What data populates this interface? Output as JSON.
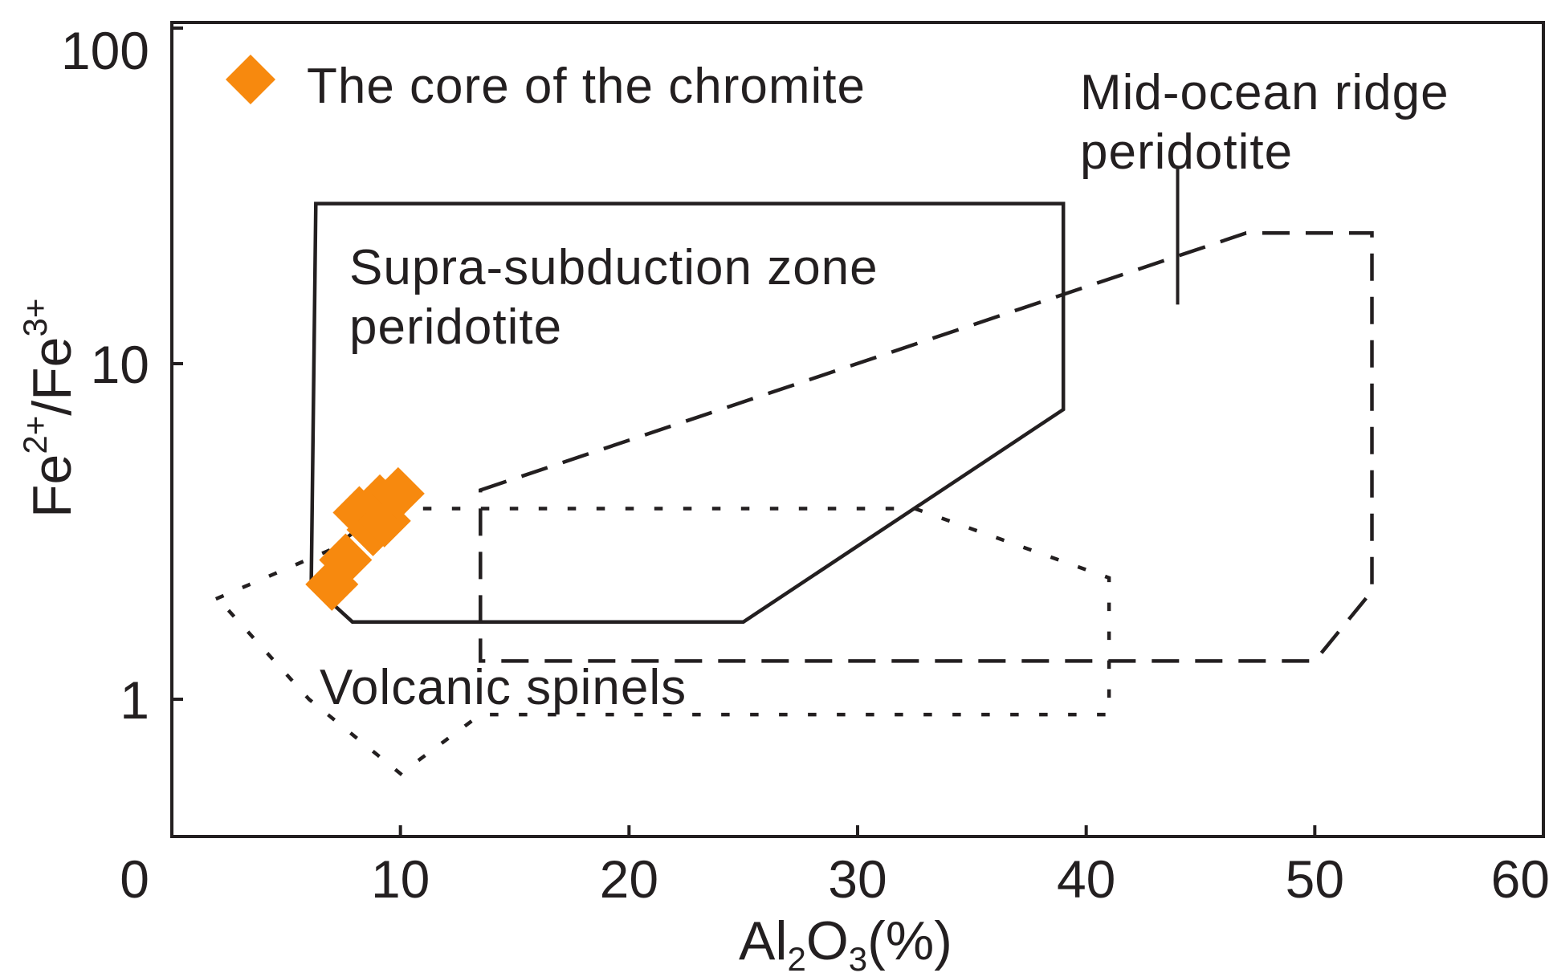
{
  "chart_data": {
    "type": "scatter",
    "title": "",
    "xlabel": {
      "base": "Al",
      "sub1": "2",
      "mid": "O",
      "sub2": "3",
      "tail": "(%)"
    },
    "ylabel": {
      "base1": "Fe",
      "sup1": "2+",
      "mid": "/Fe",
      "sup2": "3+"
    },
    "x_axis": {
      "min": 0,
      "max": 60,
      "ticks": [
        "0",
        "10",
        "20",
        "30",
        "40",
        "50",
        "60"
      ]
    },
    "y_axis": {
      "scale": "log",
      "min": 0.4,
      "max": 100,
      "ticks": [
        "1",
        "10",
        "100"
      ]
    },
    "legend": {
      "position": "top-left",
      "entries": [
        {
          "label": "The core of the chromite",
          "marker": "diamond",
          "color": "#f7890e"
        }
      ]
    },
    "series": [
      {
        "name": "The core of the chromite",
        "color": "#f7890e",
        "points": [
          {
            "x": 7.0,
            "y": 2.2
          },
          {
            "x": 7.6,
            "y": 2.6
          },
          {
            "x": 8.2,
            "y": 3.6
          },
          {
            "x": 8.8,
            "y": 3.2
          },
          {
            "x": 9.3,
            "y": 3.4
          },
          {
            "x": 9.1,
            "y": 3.9
          },
          {
            "x": 9.9,
            "y": 4.1
          }
        ]
      }
    ],
    "regions": [
      {
        "name": "Supra-subduction zone peridotite",
        "label_lines": [
          "Supra-subduction zone",
          "peridotite"
        ],
        "style": "solid",
        "vertices": [
          [
            6.3,
            30
          ],
          [
            39,
            30
          ],
          [
            39,
            7.3
          ],
          [
            25,
            1.7
          ],
          [
            7.9,
            1.7
          ],
          [
            6.1,
            2.2
          ]
        ]
      },
      {
        "name": "Mid-ocean ridge peridotite",
        "label_lines": [
          "Mid-ocean ridge",
          "peridotite"
        ],
        "style": "dashed",
        "vertices": [
          [
            13.5,
            4.2
          ],
          [
            47,
            24.5
          ],
          [
            52.5,
            24.5
          ],
          [
            52.5,
            2.1
          ],
          [
            50,
            1.3
          ],
          [
            13.5,
            1.3
          ]
        ]
      },
      {
        "name": "Volcanic spinels",
        "label_lines": [
          "Volcanic spinels"
        ],
        "style": "dotted",
        "vertices": [
          [
            2,
            2.0
          ],
          [
            7,
            2.8
          ],
          [
            9.3,
            3.7
          ],
          [
            32.5,
            3.7
          ],
          [
            41,
            2.3
          ],
          [
            41,
            0.9
          ],
          [
            13.5,
            0.9
          ],
          [
            10,
            0.6
          ],
          [
            6,
            1.0
          ]
        ]
      }
    ],
    "annotations": [
      {
        "text": "Mid-ocean ridge peridotite",
        "type": "leader-line",
        "x": 44,
        "y_range": [
          15,
          38
        ]
      }
    ],
    "grid": false
  }
}
